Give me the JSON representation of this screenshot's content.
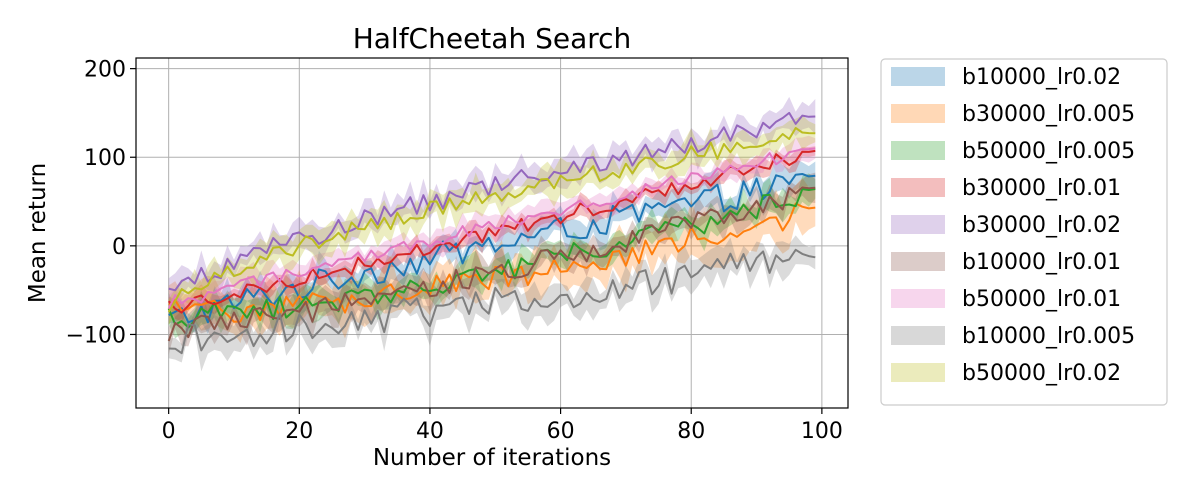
{
  "chart_data": {
    "type": "line",
    "title": "HalfCheetah Search",
    "xlabel": "Number of iterations",
    "ylabel": "Mean return",
    "xlim": [
      -5,
      104
    ],
    "ylim": [
      -183,
      212
    ],
    "xticks": [
      0,
      20,
      40,
      60,
      80,
      100
    ],
    "yticks": [
      -100,
      0,
      100,
      200
    ],
    "xtick_labels": [
      "0",
      "20",
      "40",
      "60",
      "80",
      "100"
    ],
    "ytick_labels": [
      "−100",
      "0",
      "100",
      "200"
    ],
    "grid": true,
    "legend_position": "outside-right",
    "series": [
      {
        "name": "b10000_lr0.02",
        "color": "#1f77b4",
        "start": -85,
        "end": 75,
        "band": 14,
        "noise": 16,
        "shape": 0.9
      },
      {
        "name": "b30000_lr0.005",
        "color": "#ff7f0e",
        "start": -75,
        "end": 40,
        "band": 22,
        "noise": 15,
        "shape": 1.6
      },
      {
        "name": "b50000_lr0.005",
        "color": "#2ca02c",
        "start": -80,
        "end": 62,
        "band": 14,
        "noise": 13,
        "shape": 1.5
      },
      {
        "name": "b30000_lr0.01",
        "color": "#d62728",
        "start": -70,
        "end": 106,
        "band": 9,
        "noise": 9,
        "shape": 1.05
      },
      {
        "name": "b30000_lr0.02",
        "color": "#9467bd",
        "start": -60,
        "end": 145,
        "band": 14,
        "noise": 12,
        "shape": 0.7
      },
      {
        "name": "b10000_lr0.01",
        "color": "#8c564b",
        "start": -95,
        "end": 65,
        "band": 14,
        "noise": 14,
        "shape": 1.3
      },
      {
        "name": "b50000_lr0.01",
        "color": "#e377c2",
        "start": -65,
        "end": 110,
        "band": 11,
        "noise": 8,
        "shape": 1.0
      },
      {
        "name": "b10000_lr0.005",
        "color": "#7f7f7f",
        "start": -105,
        "end": -12,
        "band": 16,
        "noise": 18,
        "shape": 1.2
      },
      {
        "name": "b50000_lr0.02",
        "color": "#bcbd22",
        "start": -70,
        "end": 128,
        "band": 15,
        "noise": 10,
        "shape": 0.65
      }
    ]
  }
}
